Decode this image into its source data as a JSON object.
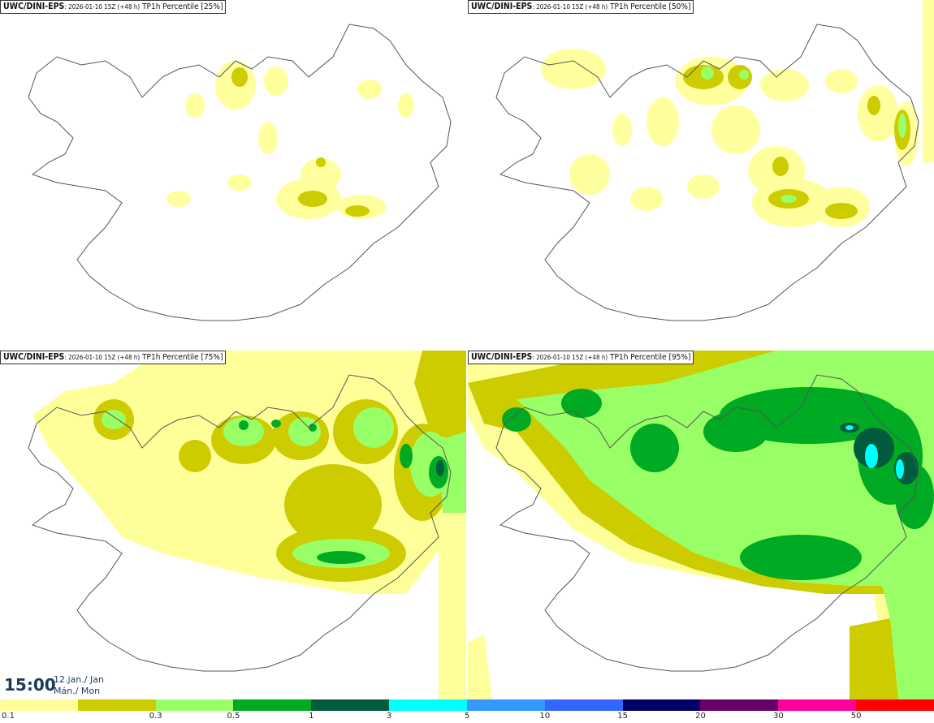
{
  "panels": [
    {
      "source": "UWC/DINI-EPS",
      "run": ": 2026-01-10 15Z (+48 h)",
      "field": "TP1h Percentile [25%]"
    },
    {
      "source": "UWC/DINI-EPS",
      "run": ": 2026-01-10 15Z (+48 h)",
      "field": "TP1h Percentile [50%]"
    },
    {
      "source": "UWC/DINI-EPS",
      "run": ": 2026-01-10 15Z (+48 h)",
      "field": "TP1h Percentile [75%]"
    },
    {
      "source": "UWC/DINI-EPS",
      "run": ": 2026-01-10 15Z (+48 h)",
      "field": "TP1h Percentile [95%]"
    }
  ],
  "valid_time": {
    "time": "15:00",
    "date_line1": "12.jan./ Jan",
    "date_line2": "Mán./ Mon"
  },
  "colorbar": {
    "colors": [
      "#ffff99",
      "#cccc00",
      "#99ff66",
      "#00aa22",
      "#005c3c",
      "#00ffff",
      "#3399ff",
      "#3366ff",
      "#000066",
      "#660066",
      "#ff0099",
      "#ff0000"
    ],
    "labels": [
      "0.1",
      "0.3",
      "0.5",
      "1",
      "3",
      "5",
      "10",
      "15",
      "20",
      "30",
      "50"
    ]
  },
  "colors": {
    "coast": "#555555",
    "background": "#ffffff"
  }
}
